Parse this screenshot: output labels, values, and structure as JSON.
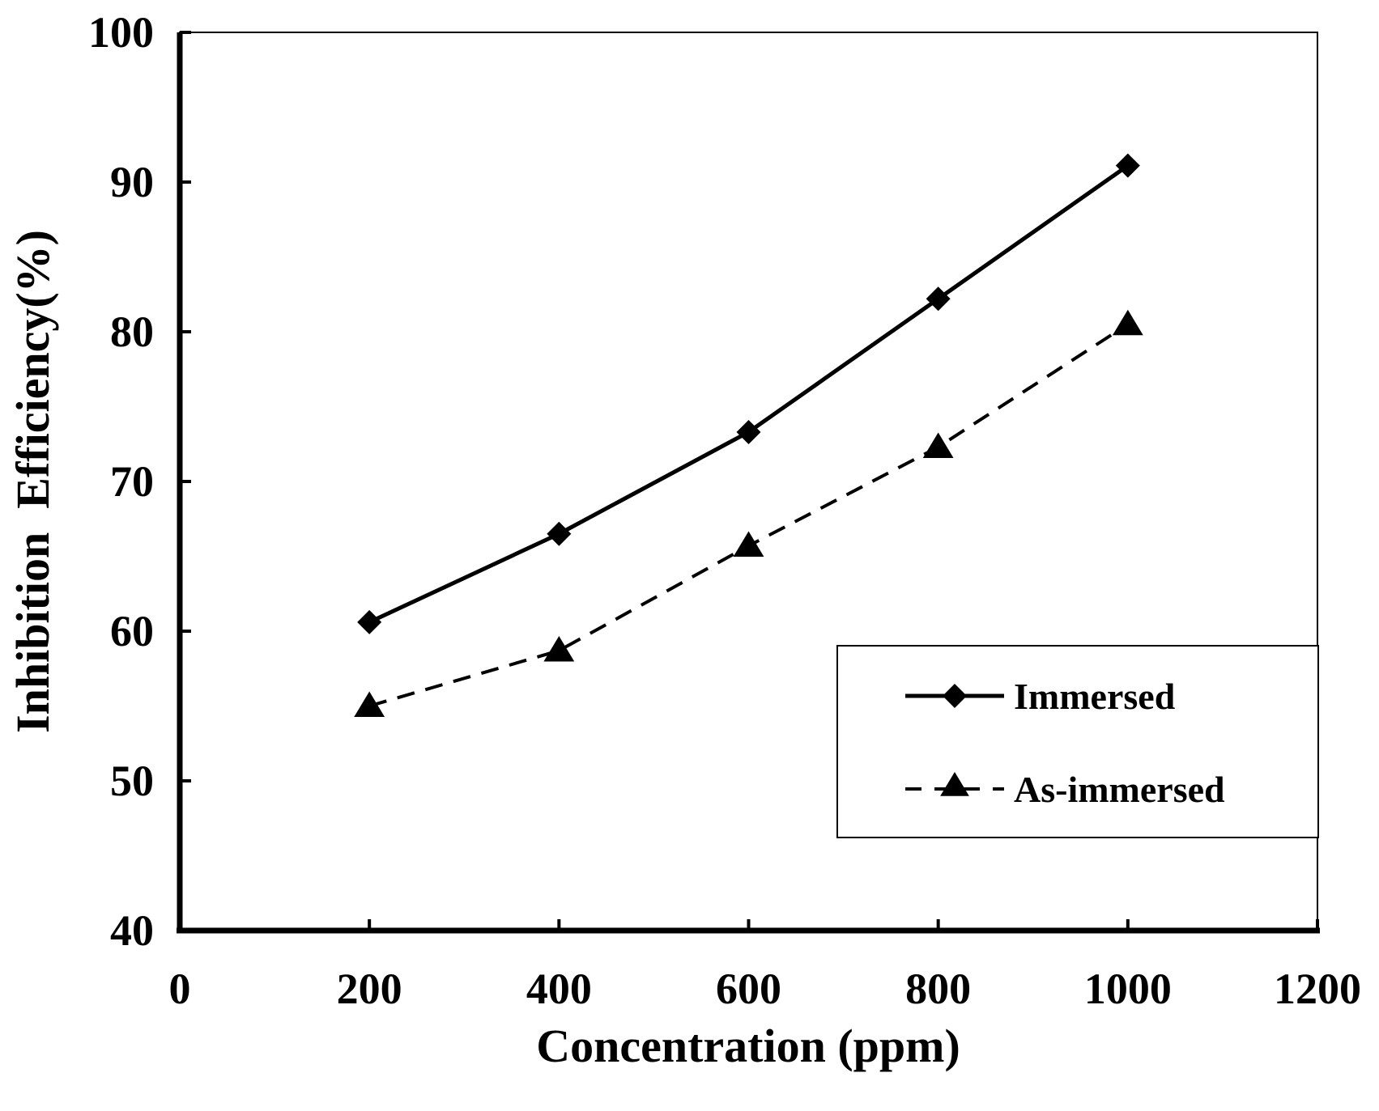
{
  "chart_data": {
    "type": "line",
    "title": "",
    "xlabel": "Concentration (ppm)",
    "ylabel": "Inhibition  Efficiency(%)",
    "xlim": [
      0,
      1200
    ],
    "ylim": [
      40,
      100
    ],
    "xticks": [
      0,
      200,
      400,
      600,
      800,
      1000,
      1200
    ],
    "yticks": [
      40,
      50,
      60,
      70,
      80,
      90,
      100
    ],
    "xtick_labels": [
      "0",
      "200",
      "400",
      "600",
      "800",
      "1000",
      "1200"
    ],
    "ytick_labels": [
      "40",
      "50",
      "60",
      "70",
      "80",
      "90",
      "100"
    ],
    "grid": false,
    "legend_position": "lower-right",
    "x": [
      200,
      400,
      600,
      800,
      1000
    ],
    "series": [
      {
        "name": "Immersed",
        "values": [
          60.6,
          66.5,
          73.3,
          82.2,
          91.1
        ],
        "line_style": "solid",
        "marker": "diamond",
        "color": "#000000"
      },
      {
        "name": "As-immersed",
        "values": [
          55.0,
          58.7,
          65.7,
          72.3,
          80.5
        ],
        "line_style": "dashed",
        "marker": "triangle",
        "color": "#000000"
      }
    ]
  }
}
